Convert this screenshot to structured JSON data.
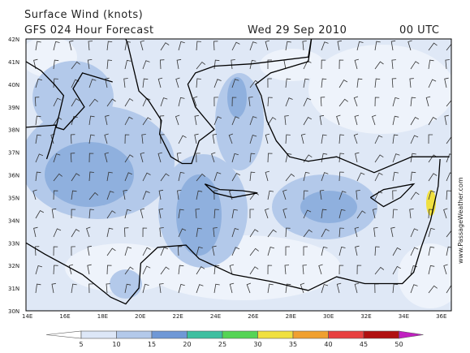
{
  "header": {
    "title": "Surface Wind (knots)",
    "forecast": "GFS 024 Hour Forecast",
    "date": "Wed 29 Sep 2010",
    "time": "00 UTC"
  },
  "map": {
    "latitude_labels": [
      "42N",
      "41N",
      "40N",
      "39N",
      "38N",
      "37N",
      "36N",
      "35N",
      "34N",
      "33N",
      "32N",
      "31N",
      "30N"
    ],
    "longitude_labels": [
      "14E",
      "16E",
      "18E",
      "20E",
      "22E",
      "24E",
      "26E",
      "28E",
      "30E",
      "32E",
      "34E",
      "36E"
    ],
    "watermark": "www.PassageWeather.com"
  },
  "colorbar": {
    "labels": [
      5,
      10,
      15,
      20,
      25,
      30,
      35,
      40,
      45,
      50
    ]
  }
}
